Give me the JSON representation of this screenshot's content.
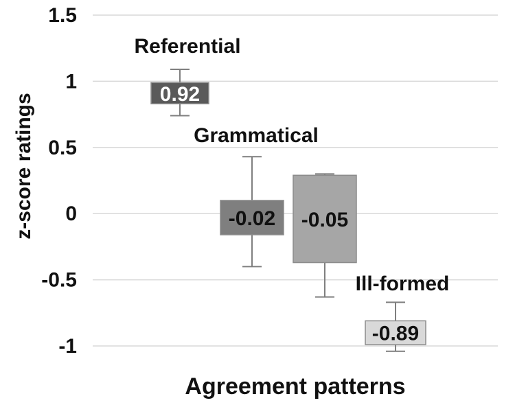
{
  "chart_data": {
    "type": "box",
    "title": "",
    "xlabel": "Agreement patterns",
    "ylabel": "z-score ratings",
    "ylim": [
      -1,
      1.5
    ],
    "yticks": [
      1.5,
      1,
      0.5,
      0,
      -0.5,
      -1
    ],
    "ytick_labels": [
      "1.5",
      "1",
      "0.5",
      "0",
      "-0.5",
      "-1"
    ],
    "grid": true,
    "legend": "none",
    "boxes": [
      {
        "label": "Referential",
        "value_label": "0.92",
        "q1": 0.83,
        "q3": 0.99,
        "whisker_low": 0.74,
        "whisker_high": 1.09,
        "fill": "#5a5a5a",
        "label_color": "#ffffff"
      },
      {
        "label": "Grammatical",
        "value_label": "-0.02",
        "q1": -0.16,
        "q3": 0.1,
        "whisker_low": -0.4,
        "whisker_high": 0.43,
        "fill": "#7f7f7f",
        "label_color": "#111111"
      },
      {
        "label": "",
        "value_label": "-0.05",
        "q1": -0.37,
        "q3": 0.29,
        "whisker_low": -0.63,
        "whisker_high": 0.3,
        "fill": "#a6a6a6",
        "label_color": "#111111"
      },
      {
        "label": "Ill-formed",
        "value_label": "-0.89",
        "q1": -0.99,
        "q3": -0.81,
        "whisker_low": -1.04,
        "whisker_high": -0.67,
        "fill": "#d9d9d9",
        "label_color": "#111111"
      }
    ]
  }
}
